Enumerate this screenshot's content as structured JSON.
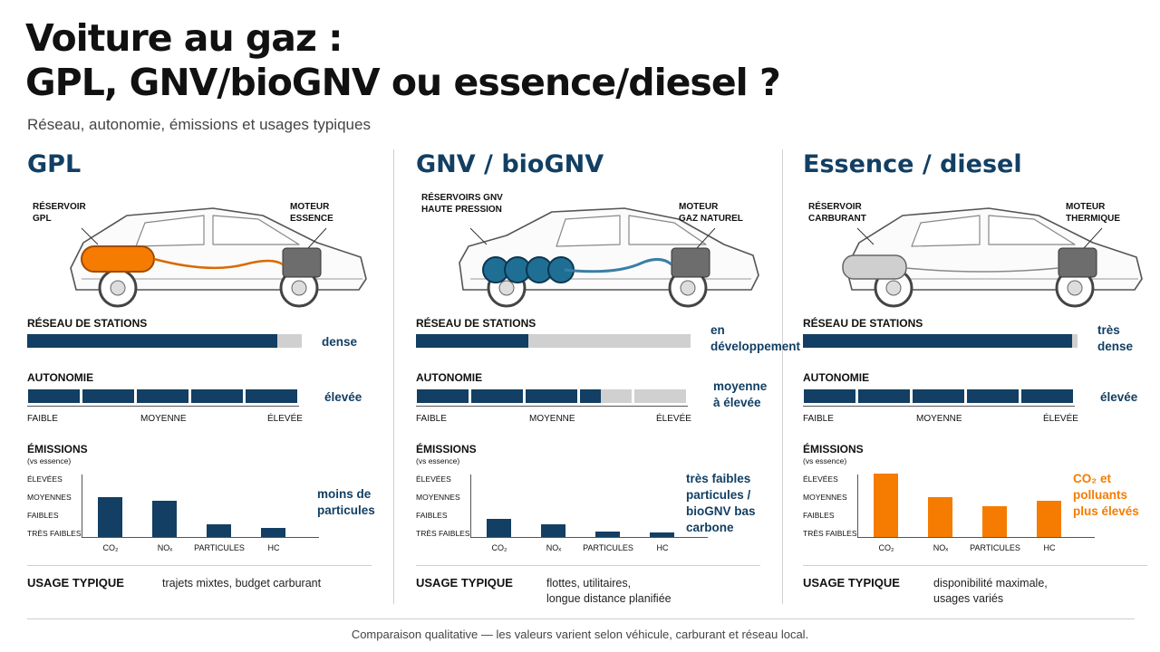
{
  "title": {
    "line1": "Voiture au gaz :",
    "line2": "GPL, GNV/bioGNV ou essence/diesel ?"
  },
  "subtitle": "Réseau, autonomie, émissions et usages typiques",
  "colors": {
    "navy": "#123f63",
    "orange": "#f57c00",
    "grey": "#d0d0d0"
  },
  "labels": {
    "network": "RÉSEAU DE STATIONS",
    "autonomy": "AUTONOMIE",
    "emissions": "ÉMISSIONS",
    "emissions_sub": "(vs essence)",
    "usage": "USAGE TYPIQUE",
    "scale_low": "FAIBLE",
    "scale_mid": "MOYENNE",
    "scale_high": "ÉLEVÉE",
    "levels": [
      "ÉLEVÉES",
      "MOYENNES",
      "FAIBLES",
      "TRÈS FAIBLES"
    ],
    "pollutants": [
      "CO₂",
      "NOₓ",
      "PARTICULES",
      "HC"
    ]
  },
  "columns": [
    {
      "name": "GPL",
      "tank_label": [
        "RÉSERVOIR",
        "GPL"
      ],
      "engine_label": [
        "MOTEUR",
        "ESSENCE"
      ],
      "icons": {
        "car": "gpl-car-icon",
        "tank": "orange-cylinder-tank"
      },
      "network_level": 0.91,
      "network_text": [
        "dense"
      ],
      "autonomy_level": 1.0,
      "autonomy_text": [
        "élevée"
      ],
      "emissions_text": [
        "moins de",
        "particules"
      ],
      "emissions_color": "#123f63",
      "emissions_values": [
        2.2,
        2.0,
        0.7,
        0.5
      ],
      "usage_text": [
        "trajets mixtes, budget carburant"
      ]
    },
    {
      "name": "GNV / bioGNV",
      "tank_label": [
        "RÉSERVOIRS GNV",
        "HAUTE PRESSION"
      ],
      "engine_label": [
        "MOTEUR",
        "GAZ NATUREL"
      ],
      "icons": {
        "car": "gnv-car-icon",
        "tank": "navy-pressure-tanks"
      },
      "network_level": 0.41,
      "network_text": [
        "en",
        "développement"
      ],
      "autonomy_level": 0.68,
      "autonomy_text": [
        "moyenne",
        "à élevée"
      ],
      "emissions_text": [
        "très faibles",
        "particules /",
        "bioGNV bas",
        "carbone"
      ],
      "emissions_color": "#123f63",
      "emissions_values": [
        1.0,
        0.7,
        0.3,
        0.25
      ],
      "usage_text": [
        "flottes, utilitaires,",
        "longue distance planifiée"
      ]
    },
    {
      "name": "Essence / diesel",
      "tank_label": [
        "RÉSERVOIR",
        "CARBURANT"
      ],
      "engine_label": [
        "MOTEUR",
        "THERMIQUE"
      ],
      "icons": {
        "car": "petrol-car-icon",
        "tank": "grey-fuel-tank"
      },
      "network_level": 0.98,
      "network_text": [
        "très",
        "dense"
      ],
      "autonomy_level": 1.0,
      "autonomy_text": [
        "élevée"
      ],
      "emissions_text": [
        "CO₂ et",
        "polluants",
        "plus élevés"
      ],
      "emissions_color": "#f57c00",
      "emissions_values": [
        3.5,
        2.2,
        1.7,
        2.0
      ],
      "usage_text": [
        "disponibilité maximale,",
        "usages variés"
      ]
    }
  ],
  "footer": "Comparaison qualitative — les valeurs varient selon véhicule, carburant et réseau local."
}
